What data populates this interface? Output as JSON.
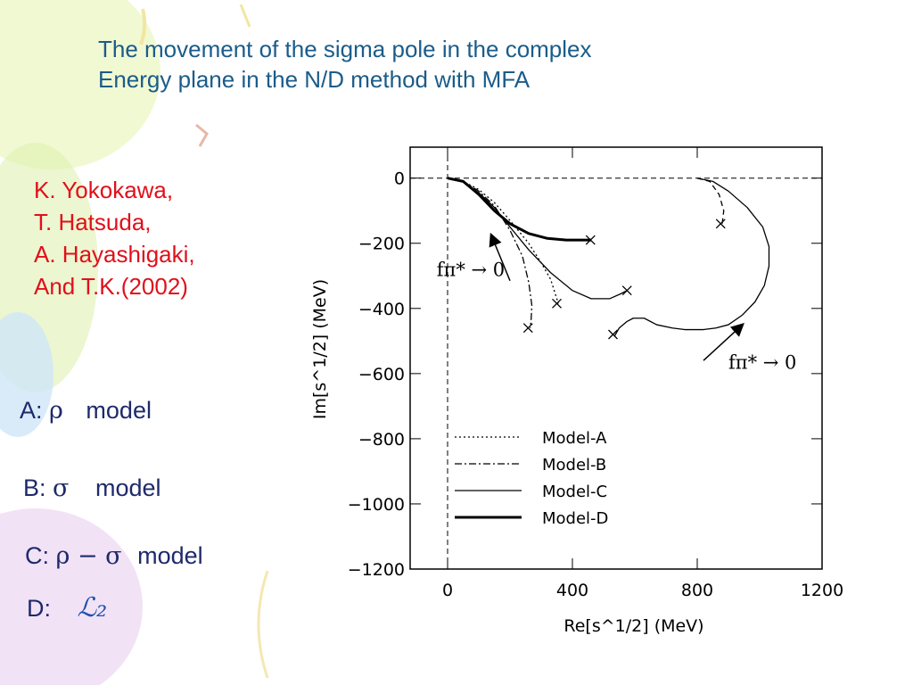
{
  "slide": {
    "title_line1": "The movement of the sigma pole in the complex",
    "title_line2": "Energy plane in the N/D method with MFA",
    "authors": [
      "K. Yokokawa,",
      "T. Hatsuda,",
      "A. Hayashigaki,",
      "And T.K.(2002)"
    ],
    "models": [
      {
        "prefix": "A:",
        "symbol": "ρ",
        "label": "model"
      },
      {
        "prefix": "B:",
        "symbol": "σ",
        "label": "model"
      },
      {
        "prefix": "C:",
        "symbol": "ρ − σ",
        "label": "model"
      },
      {
        "prefix": "D:",
        "symbol": "ℒ₂",
        "label": ""
      }
    ],
    "colors": {
      "title": "#1a5c8a",
      "authors": "#e0101a",
      "models": "#1e2a6a"
    }
  },
  "chart_data": {
    "type": "line",
    "xlabel": "Re[s^1/2] (MeV)",
    "ylabel": "Im[s^1/2] (MeV)",
    "xlim": [
      -120,
      1200
    ],
    "ylim": [
      -1200,
      95
    ],
    "xticks": [
      0,
      400,
      800,
      1200
    ],
    "yticks": [
      0,
      -200,
      -400,
      -600,
      -800,
      -1000,
      -1200
    ],
    "grid": false,
    "legend_position": "bottom-center",
    "series": [
      {
        "name": "Model-A",
        "style": "dotted",
        "x": [
          0,
          50,
          100,
          150,
          200,
          260,
          300,
          330,
          345,
          355
        ],
        "y": [
          0,
          -10,
          -35,
          -75,
          -130,
          -200,
          -260,
          -310,
          -355,
          -385
        ]
      },
      {
        "name": "Model-B",
        "style": "dashdot",
        "x": [
          0,
          50,
          100,
          150,
          200,
          240,
          260,
          270,
          268,
          265
        ],
        "y": [
          0,
          -10,
          -40,
          -85,
          -160,
          -240,
          -320,
          -390,
          -430,
          -460
        ]
      },
      {
        "name": "Model-C",
        "style": "solid",
        "x": [
          0,
          50,
          100,
          150,
          200,
          260,
          330,
          400,
          460,
          520,
          555,
          575
        ],
        "y": [
          0,
          -12,
          -45,
          -90,
          -150,
          -220,
          -290,
          -345,
          -370,
          -370,
          -355,
          -345
        ]
      },
      {
        "name": "Model-D",
        "style": "thick",
        "x": [
          0,
          50,
          100,
          150,
          200,
          260,
          320,
          380,
          430,
          460
        ],
        "y": [
          0,
          -10,
          -50,
          -100,
          -140,
          -170,
          -185,
          -190,
          -190,
          -190
        ]
      },
      {
        "name": "",
        "style": "dashed",
        "x": [
          800,
          840,
          870,
          885,
          880
        ],
        "y": [
          0,
          -10,
          -50,
          -100,
          -140
        ]
      },
      {
        "name": "",
        "style": "solid",
        "x": [
          800,
          850,
          900,
          960,
          1010,
          1030,
          1030,
          1015,
          985,
          945,
          900,
          860,
          820,
          790,
          760,
          720,
          670,
          630,
          595,
          575,
          550,
          535
        ],
        "y": [
          0,
          -10,
          -40,
          -90,
          -150,
          -210,
          -270,
          -330,
          -380,
          -420,
          -450,
          -460,
          -465,
          -465,
          -465,
          -460,
          -450,
          -430,
          -430,
          -440,
          -460,
          -485
        ]
      }
    ],
    "endpoints": [
      {
        "x": 458,
        "y": -190
      },
      {
        "x": 575,
        "y": -345
      },
      {
        "x": 350,
        "y": -385
      },
      {
        "x": 258,
        "y": -460
      },
      {
        "x": 530,
        "y": -480
      },
      {
        "x": 875,
        "y": -140
      }
    ],
    "annotations": [
      {
        "text": "fπ* → 0",
        "at_x": -35,
        "at_y": -300,
        "arrow_from": [
          200,
          -315
        ],
        "arrow_to": [
          140,
          -175
        ]
      },
      {
        "text": "fπ* → 0",
        "at_x": 900,
        "at_y": -585,
        "arrow_from": [
          820,
          -560
        ],
        "arrow_to": [
          945,
          -450
        ]
      }
    ]
  }
}
